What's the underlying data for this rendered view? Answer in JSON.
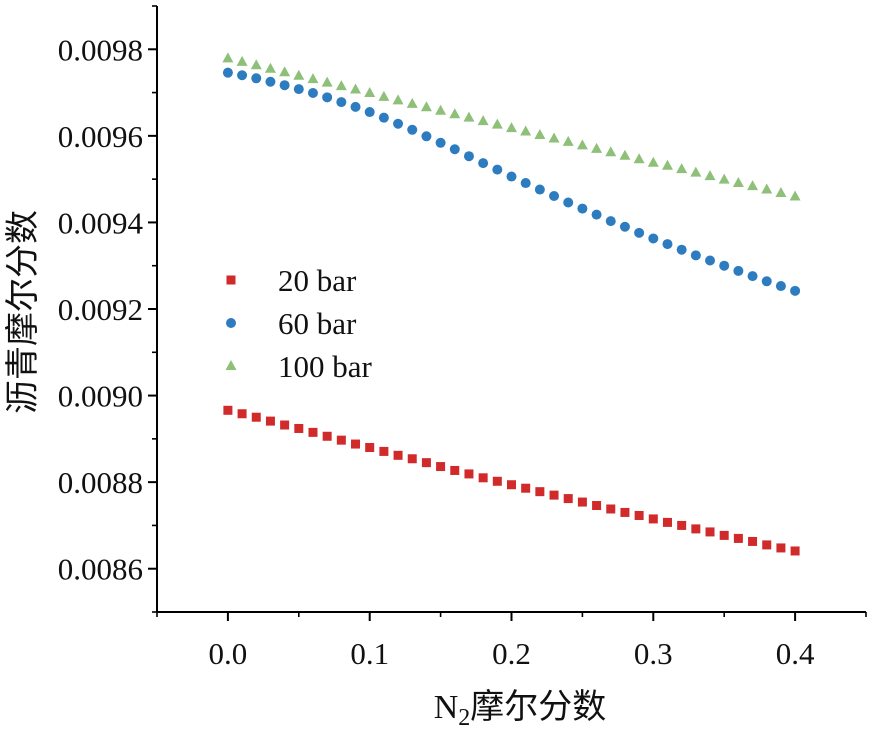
{
  "chart_data": {
    "type": "scatter",
    "title": "",
    "xlabel": "N",
    "xlabel_sub": "2",
    "xlabel_suffix": "摩尔分数",
    "ylabel": "沥青摩尔分数",
    "xlim": [
      -0.05,
      0.45
    ],
    "ylim": [
      0.0085,
      0.0099
    ],
    "x_ticks": [
      0.0,
      0.1,
      0.2,
      0.3,
      0.4
    ],
    "x_tick_labels": [
      "0.0",
      "0.1",
      "0.2",
      "0.3",
      "0.4"
    ],
    "y_ticks": [
      0.0086,
      0.0088,
      0.009,
      0.0092,
      0.0094,
      0.0096,
      0.0098
    ],
    "y_tick_labels": [
      "0.0086",
      "0.0088",
      "0.0090",
      "0.0092",
      "0.0094",
      "0.0096",
      "0.0098"
    ],
    "grid": false,
    "legend_position": "center-left",
    "x": [
      0.0,
      0.01,
      0.02,
      0.03,
      0.04,
      0.05,
      0.06,
      0.07,
      0.08,
      0.09,
      0.1,
      0.11,
      0.12,
      0.13,
      0.14,
      0.15,
      0.16,
      0.17,
      0.18,
      0.19,
      0.2,
      0.21,
      0.22,
      0.23,
      0.24,
      0.25,
      0.26,
      0.27,
      0.28,
      0.29,
      0.3,
      0.31,
      0.32,
      0.33,
      0.34,
      0.35,
      0.36,
      0.37,
      0.38,
      0.39,
      0.4
    ],
    "series": [
      {
        "name": "20 bar",
        "marker": "square",
        "color": "#d02a2a",
        "values": [
          0.008966,
          0.008958,
          0.00895,
          0.008941,
          0.008932,
          0.008924,
          0.008915,
          0.008906,
          0.008897,
          0.008888,
          0.00888,
          0.008871,
          0.008862,
          0.008854,
          0.008845,
          0.008836,
          0.008827,
          0.008819,
          0.00881,
          0.008802,
          0.008794,
          0.008786,
          0.008778,
          0.00877,
          0.008762,
          0.008754,
          0.008746,
          0.008738,
          0.00873,
          0.008723,
          0.008715,
          0.008707,
          0.0087,
          0.008692,
          0.008685,
          0.008677,
          0.00867,
          0.008663,
          0.008655,
          0.008648,
          0.008641
        ]
      },
      {
        "name": "60 bar",
        "marker": "circle",
        "color": "#2e7cc0",
        "values": [
          0.009746,
          0.00974,
          0.009733,
          0.009725,
          0.009717,
          0.009708,
          0.009699,
          0.009689,
          0.009678,
          0.009667,
          0.009655,
          0.009642,
          0.009628,
          0.009614,
          0.009599,
          0.009584,
          0.009569,
          0.009553,
          0.009537,
          0.009522,
          0.009506,
          0.009491,
          0.009476,
          0.009461,
          0.009446,
          0.009432,
          0.009418,
          0.009403,
          0.00939,
          0.009376,
          0.009363,
          0.00935,
          0.009337,
          0.009324,
          0.009312,
          0.0093,
          0.009288,
          0.009276,
          0.009264,
          0.009253,
          0.009242
        ]
      },
      {
        "name": "100 bar",
        "marker": "triangle",
        "color": "#8fc07a",
        "values": [
          0.009779,
          0.009771,
          0.009763,
          0.009755,
          0.009747,
          0.009739,
          0.009731,
          0.009723,
          0.009715,
          0.009707,
          0.009699,
          0.00969,
          0.009682,
          0.009674,
          0.009666,
          0.009658,
          0.00965,
          0.009642,
          0.009634,
          0.009626,
          0.009618,
          0.00961,
          0.009602,
          0.009594,
          0.009586,
          0.009578,
          0.00957,
          0.009562,
          0.009554,
          0.009546,
          0.009538,
          0.009531,
          0.009523,
          0.009515,
          0.009507,
          0.009499,
          0.009491,
          0.009484,
          0.009476,
          0.009468,
          0.00946
        ]
      }
    ]
  }
}
